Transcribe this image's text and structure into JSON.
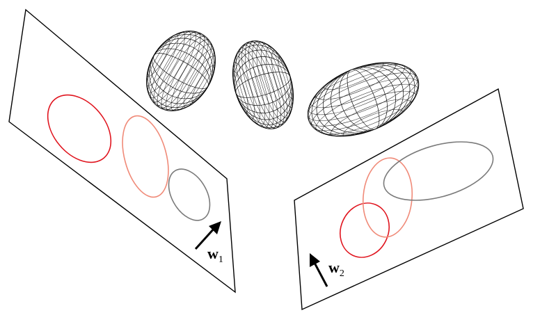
{
  "colors": {
    "red": "#e0141e",
    "salmon": "#f08a78",
    "gray": "#7a7a7a",
    "red_fill_light": "#ff3a3a",
    "red_fill_dark": "#8a0000",
    "salmon_fill_light": "#ffb8a4",
    "salmon_fill_dark": "#b8553f",
    "gray_fill_light": "#cfcfcf",
    "gray_fill_dark": "#2a2a2a"
  },
  "ellipsoids": [
    {
      "name": "red",
      "icon": "red-ellipsoid"
    },
    {
      "name": "salmon",
      "icon": "salmon-ellipsoid"
    },
    {
      "name": "gray",
      "icon": "gray-ellipsoid"
    }
  ],
  "planes": [
    {
      "direction_symbol": "w",
      "direction_subscript": "1"
    },
    {
      "direction_symbol": "w",
      "direction_subscript": "2"
    }
  ]
}
